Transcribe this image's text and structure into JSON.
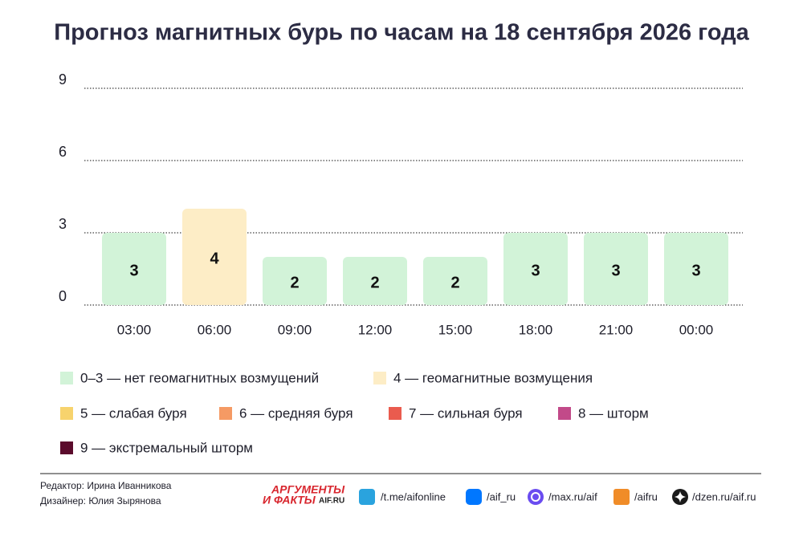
{
  "chart_data": {
    "type": "bar",
    "title": "Прогноз магнитных бурь по часам на 18 сентября 2026 года",
    "categories": [
      "03:00",
      "06:00",
      "09:00",
      "12:00",
      "15:00",
      "18:00",
      "21:00",
      "00:00"
    ],
    "values": [
      3,
      4,
      2,
      2,
      2,
      3,
      3,
      3
    ],
    "colors": [
      "#d2f3d8",
      "#fdedc6",
      "#d2f3d8",
      "#d2f3d8",
      "#d2f3d8",
      "#d2f3d8",
      "#d2f3d8",
      "#d2f3d8"
    ],
    "ylim": [
      0,
      9
    ],
    "yticks": [
      0,
      3,
      6,
      9
    ],
    "grid": true,
    "legend": [
      {
        "label": "0–3 — нет геомагнитных возмущений",
        "color": "#d2f3d8"
      },
      {
        "label": "4 — геомагнитные возмущения",
        "color": "#fdedc6"
      },
      {
        "label": "5 — слабая буря",
        "color": "#f7d36d"
      },
      {
        "label": "6 — средняя буря",
        "color": "#f59a64"
      },
      {
        "label": "7 — сильная буря",
        "color": "#ea5b4e"
      },
      {
        "label": "8 — шторм",
        "color": "#c24a89"
      },
      {
        "label": "9 — экстремальный шторм",
        "color": "#5b0b2c"
      }
    ]
  },
  "footer": {
    "editor": "Редактор: Ирина Иванникова",
    "designer": "Дизайнер: Юлия Зырянова",
    "logo": [
      "АРГУМЕНТЫ",
      "И ФАКТЫ",
      "AIF.RU"
    ],
    "links": [
      "/t.me/aifonline",
      "/aif_ru",
      "/max.ru/aif",
      "/aifru",
      "/dzen.ru/aif.ru"
    ]
  }
}
